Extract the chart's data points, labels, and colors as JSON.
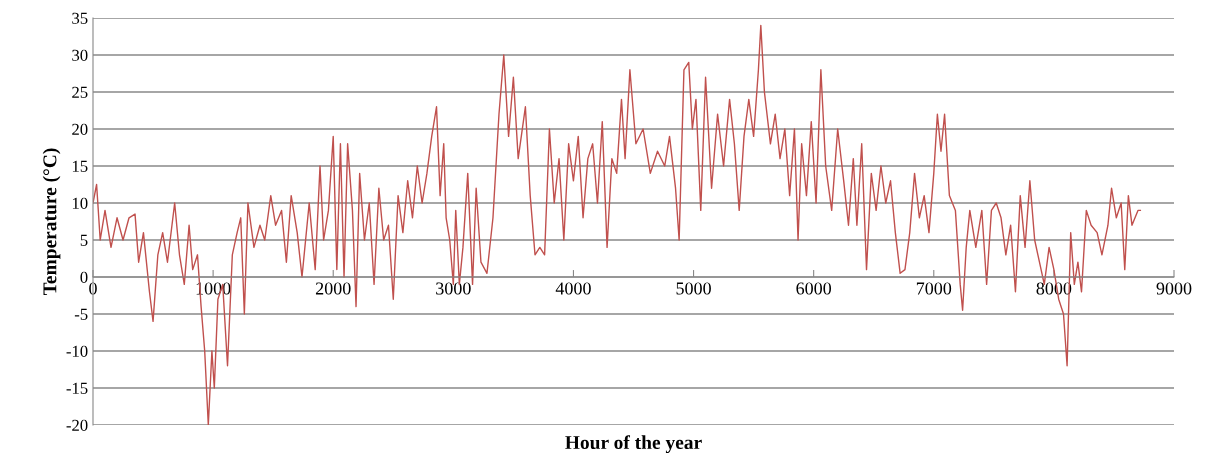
{
  "chart_data": {
    "type": "line",
    "xlabel": "Hour of the year",
    "ylabel": "Temperature (°C)",
    "x": [
      0,
      30,
      60,
      100,
      150,
      200,
      250,
      300,
      350,
      380,
      420,
      470,
      500,
      540,
      580,
      620,
      680,
      720,
      760,
      800,
      830,
      870,
      900,
      930,
      960,
      990,
      1010,
      1040,
      1080,
      1120,
      1160,
      1200,
      1230,
      1260,
      1290,
      1340,
      1390,
      1430,
      1480,
      1520,
      1570,
      1610,
      1650,
      1700,
      1740,
      1800,
      1850,
      1890,
      1920,
      1960,
      2000,
      2030,
      2060,
      2090,
      2120,
      2160,
      2190,
      2220,
      2260,
      2300,
      2340,
      2380,
      2420,
      2460,
      2500,
      2540,
      2580,
      2620,
      2660,
      2700,
      2740,
      2780,
      2820,
      2860,
      2890,
      2920,
      2940,
      2970,
      3000,
      3020,
      3050,
      3080,
      3120,
      3160,
      3190,
      3230,
      3280,
      3330,
      3380,
      3420,
      3460,
      3500,
      3540,
      3600,
      3640,
      3680,
      3720,
      3760,
      3800,
      3840,
      3880,
      3920,
      3960,
      4000,
      4040,
      4080,
      4120,
      4160,
      4200,
      4240,
      4280,
      4320,
      4360,
      4400,
      4430,
      4470,
      4520,
      4580,
      4640,
      4700,
      4760,
      4800,
      4850,
      4880,
      4920,
      4960,
      4990,
      5020,
      5060,
      5100,
      5150,
      5200,
      5250,
      5300,
      5340,
      5380,
      5420,
      5460,
      5500,
      5540,
      5560,
      5590,
      5640,
      5680,
      5720,
      5760,
      5800,
      5840,
      5870,
      5900,
      5940,
      5980,
      6020,
      6060,
      6100,
      6150,
      6200,
      6250,
      6290,
      6330,
      6360,
      6400,
      6440,
      6480,
      6520,
      6560,
      6600,
      6640,
      6680,
      6720,
      6760,
      6800,
      6840,
      6880,
      6920,
      6960,
      7000,
      7030,
      7060,
      7090,
      7130,
      7180,
      7220,
      7240,
      7270,
      7300,
      7350,
      7400,
      7440,
      7480,
      7520,
      7560,
      7600,
      7640,
      7680,
      7720,
      7760,
      7800,
      7840,
      7880,
      7920,
      7960,
      8000,
      8040,
      8080,
      8110,
      8140,
      8170,
      8200,
      8230,
      8270,
      8310,
      8360,
      8400,
      8450,
      8480,
      8520,
      8560,
      8590,
      8620,
      8650,
      8700,
      8720
    ],
    "series": [
      {
        "color": "#c0504d",
        "values": [
          10,
          12.5,
          5,
          9,
          4,
          8,
          5,
          8,
          8.5,
          2,
          6,
          -2,
          -6,
          3,
          6,
          2,
          10,
          3,
          -1,
          7,
          1,
          3,
          -4,
          -10,
          -20,
          -10,
          -15,
          -3,
          -1,
          -12,
          3,
          6,
          8,
          -5,
          10,
          4,
          7,
          5,
          11,
          7,
          9,
          2,
          11,
          6,
          0,
          10,
          1,
          15,
          5,
          9,
          19,
          1,
          18,
          0,
          18,
          9,
          -4,
          14,
          5,
          10,
          -1,
          12,
          5,
          7,
          -3,
          11,
          6,
          13,
          8,
          15,
          10,
          14,
          19,
          23,
          11,
          18,
          8,
          5,
          -1,
          9,
          -1,
          4,
          14,
          -1,
          12,
          2,
          0.5,
          8,
          22,
          30,
          19,
          27,
          16,
          23,
          11,
          3,
          4,
          3,
          20,
          10,
          16,
          5,
          18,
          13,
          19,
          8,
          16,
          18,
          10,
          21,
          4,
          16,
          14,
          24,
          16,
          28,
          18,
          20,
          14,
          17,
          15,
          19,
          12,
          5,
          28,
          29,
          20,
          24,
          9,
          27,
          12,
          22,
          15,
          24,
          18,
          9,
          19,
          24,
          19,
          28,
          34,
          25,
          18,
          22,
          16,
          20,
          11,
          20,
          5,
          18,
          11,
          21,
          10,
          28,
          15,
          9,
          20,
          13,
          7,
          16,
          7,
          18,
          1,
          14,
          9,
          15,
          10,
          13,
          6,
          0.5,
          1,
          6,
          14,
          8,
          11,
          6,
          14,
          22,
          17,
          22,
          11,
          9,
          -1,
          -4.5,
          4,
          9,
          4,
          9,
          -1,
          9,
          10,
          8,
          3,
          7,
          -2,
          11,
          4,
          13,
          5,
          2,
          -1,
          4,
          1,
          -3,
          -5,
          -12,
          6,
          -1,
          2,
          -2,
          9,
          7,
          6,
          3,
          7,
          12,
          8,
          10,
          1,
          11,
          7,
          9,
          9
        ]
      }
    ],
    "xlim": [
      0,
      9000
    ],
    "xticks": [
      0,
      1000,
      2000,
      3000,
      4000,
      5000,
      6000,
      7000,
      8000,
      9000
    ],
    "ylim": [
      -20,
      35
    ],
    "yticks": [
      -20,
      -15,
      -10,
      -5,
      0,
      5,
      10,
      15,
      20,
      25,
      30,
      35
    ],
    "grid": "y",
    "legend": false,
    "marker": "none",
    "line_style": "solid"
  }
}
